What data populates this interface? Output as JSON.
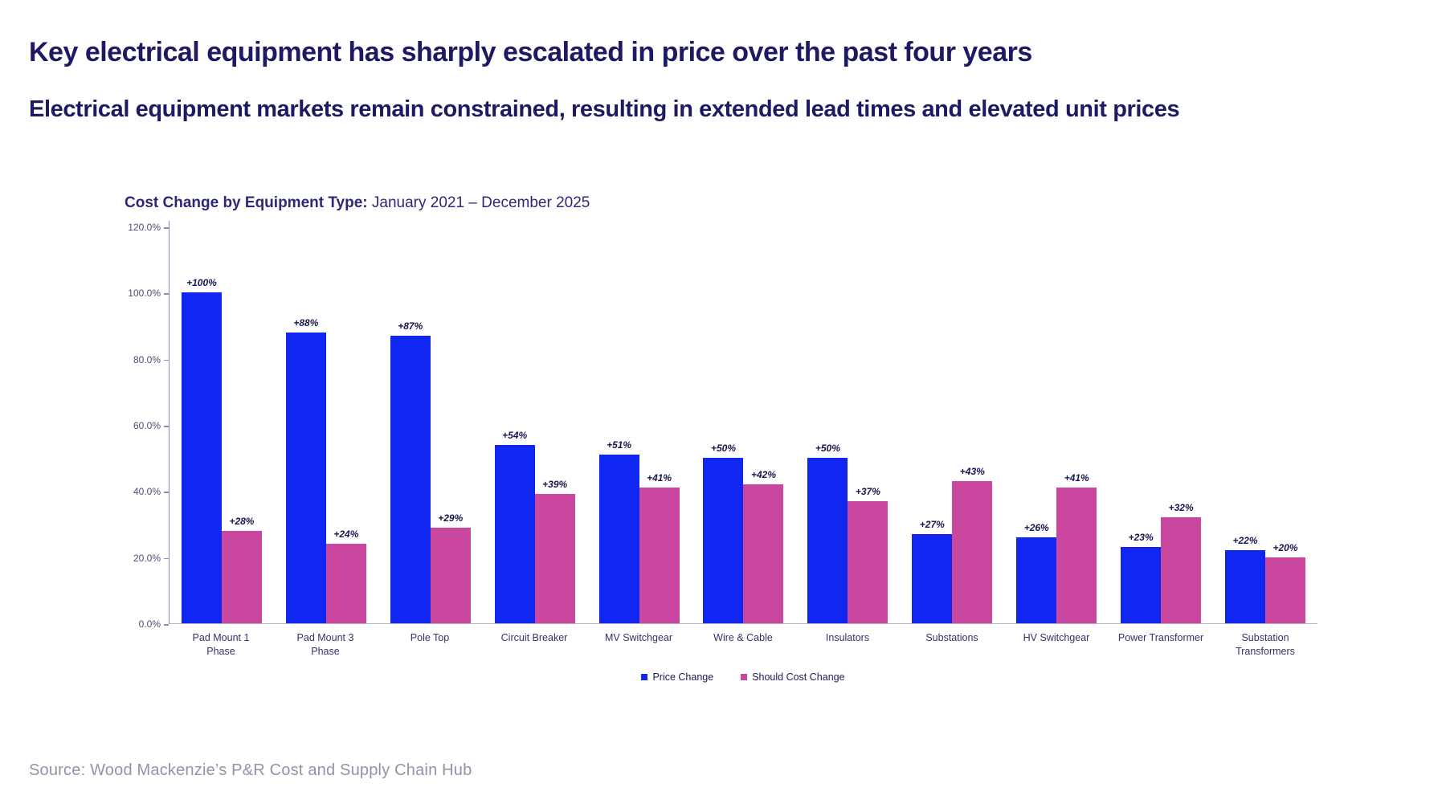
{
  "page": {
    "title": "Key electrical equipment has sharply escalated in price over the past four years",
    "subtitle": "Electrical equipment markets remain constrained, resulting in extended lead times and elevated unit prices",
    "source": "Source: Wood Mackenzie’s P&R Cost and Supply Chain Hub"
  },
  "chart": {
    "title_bold": "Cost Change by Equipment Type:",
    "title_rest": " January 2021 – December 2025"
  },
  "chart_data": {
    "type": "bar",
    "title": "Cost Change by Equipment Type: January 2021 – December 2025",
    "categories": [
      "Pad Mount 1 Phase",
      "Pad Mount 3 Phase",
      "Pole Top",
      "Circuit Breaker",
      "MV Switchgear",
      "Wire & Cable",
      "Insulators",
      "Substations",
      "HV Switchgear",
      "Power Transformer",
      "Substation Transformers"
    ],
    "category_lines": [
      [
        "Pad Mount 1",
        "Phase"
      ],
      [
        "Pad Mount 3",
        "Phase"
      ],
      [
        "Pole Top"
      ],
      [
        "Circuit Breaker"
      ],
      [
        "MV Switchgear"
      ],
      [
        "Wire & Cable"
      ],
      [
        "Insulators"
      ],
      [
        "Substations"
      ],
      [
        "HV Switchgear"
      ],
      [
        "Power Transformer"
      ],
      [
        "Substation",
        "Transformers"
      ]
    ],
    "series": [
      {
        "name": "Price Change",
        "color": "#1126f0",
        "values": [
          100,
          88,
          87,
          54,
          51,
          50,
          50,
          27,
          26,
          23,
          22
        ],
        "labels": [
          "+100%",
          "+88%",
          "+87%",
          "+54%",
          "+51%",
          "+50%",
          "+50%",
          "+27%",
          "+26%",
          "+23%",
          "+22%"
        ]
      },
      {
        "name": "Should Cost Change",
        "color": "#c9479e",
        "values": [
          28,
          24,
          29,
          39,
          41,
          42,
          37,
          43,
          41,
          32,
          20
        ],
        "labels": [
          "+28%",
          "+24%",
          "+29%",
          "+39%",
          "+41%",
          "+42%",
          "+37%",
          "+43%",
          "+41%",
          "+32%",
          "+20%"
        ]
      }
    ],
    "xlabel": "",
    "ylabel": "",
    "ylim": [
      0,
      120
    ],
    "y_ticks": [
      "120.0%",
      "100.0%",
      "80.0%",
      "60.0%",
      "40.0%",
      "20.0%",
      "0.0%"
    ],
    "grid": false,
    "legend_position": "bottom"
  }
}
